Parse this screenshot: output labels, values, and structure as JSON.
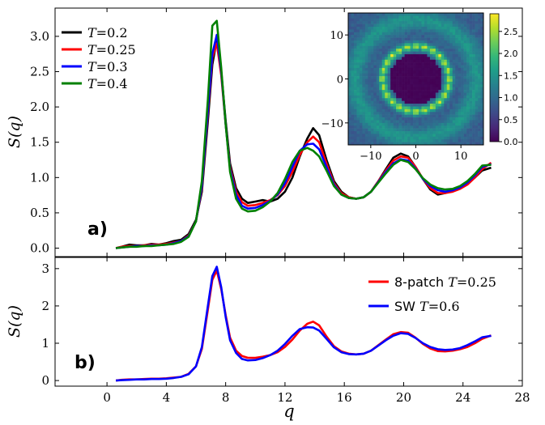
{
  "chart_data": [
    {
      "panel_label": "a)",
      "type": "line",
      "xlabel": "",
      "ylabel": "S(q)",
      "xlim": [
        -3.5,
        28
      ],
      "ylim": [
        -0.12,
        3.4
      ],
      "yticks": [
        "0.0",
        "0.5",
        "1.0",
        "1.5",
        "2.0",
        "2.5",
        "3.0"
      ],
      "yticks_values": [
        0,
        0.5,
        1.0,
        1.5,
        2.0,
        2.5,
        3.0
      ],
      "legend_position": "top-left",
      "series": [
        {
          "name": "T=0.2",
          "color": "#000000",
          "x": [
            0.6,
            1.0,
            1.5,
            2.0,
            2.5,
            3.0,
            3.5,
            4.0,
            4.5,
            5.0,
            5.5,
            6.0,
            6.4,
            6.8,
            7.1,
            7.4,
            7.7,
            8.0,
            8.3,
            8.7,
            9.1,
            9.5,
            10.0,
            10.5,
            11.0,
            11.5,
            12.0,
            12.5,
            13.0,
            13.5,
            13.9,
            14.3,
            14.8,
            15.3,
            15.8,
            16.3,
            16.8,
            17.3,
            17.8,
            18.3,
            18.8,
            19.3,
            19.8,
            20.3,
            20.8,
            21.3,
            21.8,
            22.3,
            22.8,
            23.3,
            23.8,
            24.3,
            24.8,
            25.3,
            25.9
          ],
          "y": [
            0.0,
            0.02,
            0.05,
            0.04,
            0.04,
            0.06,
            0.05,
            0.07,
            0.1,
            0.12,
            0.2,
            0.4,
            0.8,
            1.8,
            2.6,
            2.95,
            2.5,
            1.8,
            1.2,
            0.85,
            0.7,
            0.64,
            0.66,
            0.68,
            0.66,
            0.7,
            0.8,
            1.0,
            1.3,
            1.55,
            1.7,
            1.6,
            1.25,
            0.95,
            0.8,
            0.72,
            0.7,
            0.72,
            0.8,
            0.95,
            1.12,
            1.28,
            1.34,
            1.3,
            1.15,
            0.98,
            0.83,
            0.76,
            0.78,
            0.82,
            0.85,
            0.92,
            1.0,
            1.1,
            1.14
          ]
        },
        {
          "name": "T=0.25",
          "color": "#ff0000",
          "x": [
            0.6,
            1.0,
            1.5,
            2.0,
            2.5,
            3.0,
            3.5,
            4.0,
            4.5,
            5.0,
            5.5,
            6.0,
            6.4,
            6.8,
            7.1,
            7.4,
            7.7,
            8.0,
            8.3,
            8.7,
            9.1,
            9.5,
            10.0,
            10.5,
            11.0,
            11.5,
            12.0,
            12.5,
            13.0,
            13.5,
            13.9,
            14.3,
            14.8,
            15.3,
            15.8,
            16.3,
            16.8,
            17.3,
            17.8,
            18.3,
            18.8,
            19.3,
            19.8,
            20.3,
            20.8,
            21.3,
            21.8,
            22.3,
            22.8,
            23.3,
            23.8,
            24.3,
            24.8,
            25.3,
            25.9
          ],
          "y": [
            0.0,
            0.02,
            0.03,
            0.03,
            0.04,
            0.05,
            0.05,
            0.06,
            0.08,
            0.1,
            0.18,
            0.38,
            0.85,
            1.9,
            2.7,
            2.9,
            2.45,
            1.75,
            1.15,
            0.8,
            0.65,
            0.6,
            0.61,
            0.64,
            0.68,
            0.75,
            0.88,
            1.08,
            1.32,
            1.5,
            1.58,
            1.5,
            1.2,
            0.92,
            0.78,
            0.72,
            0.7,
            0.72,
            0.8,
            0.95,
            1.1,
            1.24,
            1.3,
            1.28,
            1.15,
            0.98,
            0.85,
            0.78,
            0.78,
            0.8,
            0.84,
            0.9,
            1.0,
            1.12,
            1.21
          ]
        },
        {
          "name": "T=0.3",
          "color": "#0000ff",
          "x": [
            0.6,
            1.0,
            1.5,
            2.0,
            2.5,
            3.0,
            3.5,
            4.0,
            4.5,
            5.0,
            5.5,
            6.0,
            6.4,
            6.8,
            7.1,
            7.4,
            7.7,
            8.0,
            8.3,
            8.7,
            9.1,
            9.5,
            10.0,
            10.5,
            11.0,
            11.5,
            12.0,
            12.5,
            13.0,
            13.5,
            13.9,
            14.3,
            14.8,
            15.3,
            15.8,
            16.3,
            16.8,
            17.3,
            17.8,
            18.3,
            18.8,
            19.3,
            19.8,
            20.3,
            20.8,
            21.3,
            21.8,
            22.3,
            22.8,
            23.3,
            23.8,
            24.3,
            24.8,
            25.3,
            25.9
          ],
          "y": [
            0.0,
            0.01,
            0.02,
            0.03,
            0.03,
            0.04,
            0.04,
            0.05,
            0.07,
            0.1,
            0.17,
            0.38,
            0.88,
            1.95,
            2.75,
            3.02,
            2.5,
            1.75,
            1.12,
            0.76,
            0.6,
            0.56,
            0.57,
            0.61,
            0.67,
            0.76,
            0.92,
            1.15,
            1.38,
            1.47,
            1.48,
            1.4,
            1.15,
            0.9,
            0.76,
            0.71,
            0.7,
            0.72,
            0.8,
            0.94,
            1.08,
            1.2,
            1.26,
            1.24,
            1.13,
            0.98,
            0.88,
            0.82,
            0.8,
            0.82,
            0.86,
            0.93,
            1.03,
            1.15,
            1.19
          ]
        },
        {
          "name": "T=0.4",
          "color": "#008000",
          "x": [
            0.6,
            1.0,
            1.5,
            2.0,
            2.5,
            3.0,
            3.5,
            4.0,
            4.5,
            5.0,
            5.5,
            6.0,
            6.4,
            6.8,
            7.1,
            7.4,
            7.7,
            8.0,
            8.3,
            8.7,
            9.1,
            9.5,
            10.0,
            10.5,
            11.0,
            11.5,
            12.0,
            12.5,
            13.0,
            13.5,
            13.9,
            14.3,
            14.8,
            15.3,
            15.8,
            16.3,
            16.8,
            17.3,
            17.8,
            18.3,
            18.8,
            19.3,
            19.8,
            20.3,
            20.8,
            21.3,
            21.8,
            22.3,
            22.8,
            23.3,
            23.8,
            24.3,
            24.8,
            25.3,
            25.9
          ],
          "y": [
            0.0,
            0.01,
            0.02,
            0.02,
            0.03,
            0.03,
            0.04,
            0.05,
            0.06,
            0.09,
            0.16,
            0.38,
            0.95,
            2.1,
            3.15,
            3.22,
            2.55,
            1.75,
            1.08,
            0.7,
            0.56,
            0.52,
            0.53,
            0.58,
            0.66,
            0.78,
            0.98,
            1.22,
            1.38,
            1.42,
            1.38,
            1.3,
            1.1,
            0.88,
            0.76,
            0.71,
            0.7,
            0.72,
            0.8,
            0.93,
            1.06,
            1.18,
            1.25,
            1.22,
            1.12,
            0.99,
            0.9,
            0.85,
            0.83,
            0.84,
            0.88,
            0.95,
            1.05,
            1.17,
            1.18
          ]
        }
      ],
      "inset": {
        "type": "heatmap",
        "xticks": [
          "−10",
          "0",
          "10"
        ],
        "xticks_values": [
          -10,
          0,
          10
        ],
        "yticks": [
          "−10",
          "0",
          "10"
        ],
        "yticks_values": [
          -10,
          0,
          10
        ],
        "range": [
          -15,
          15
        ],
        "colorbar_ticks": [
          "0.0",
          "0.5",
          "1.0",
          "1.5",
          "2.0",
          "2.5"
        ],
        "colorbar_values": [
          0,
          0.5,
          1.0,
          1.5,
          2.0,
          2.5
        ],
        "colorbar_range": [
          0,
          2.9
        ],
        "colormap": "viridis",
        "ring_radius": 7.4,
        "ring_peak": 2.8,
        "spot_count": 24,
        "second_ring_radius": 13.5,
        "second_ring_level": 1.5,
        "background_level": 1.0,
        "center_level": 0.0
      }
    },
    {
      "panel_label": "b)",
      "type": "line",
      "xlabel": "q",
      "ylabel": "S(q)",
      "xlim": [
        -3.5,
        28
      ],
      "ylim": [
        -0.15,
        3.3
      ],
      "xticks": [
        "0",
        "4",
        "8",
        "12",
        "16",
        "20",
        "24",
        "28"
      ],
      "xticks_values": [
        0,
        4,
        8,
        12,
        16,
        20,
        24,
        28
      ],
      "yticks": [
        "0",
        "1",
        "2",
        "3"
      ],
      "yticks_values": [
        0,
        1,
        2,
        3
      ],
      "legend_position": "top-right",
      "series": [
        {
          "name": "8-patch T=0.25",
          "label_text": "8-patch",
          "label_math": "T=0.25",
          "color": "#ff0000",
          "x": [
            0.6,
            1.0,
            1.5,
            2.0,
            2.5,
            3.0,
            3.5,
            4.0,
            4.5,
            5.0,
            5.5,
            6.0,
            6.4,
            6.8,
            7.1,
            7.4,
            7.7,
            8.0,
            8.3,
            8.7,
            9.1,
            9.5,
            10.0,
            10.5,
            11.0,
            11.5,
            12.0,
            12.5,
            13.0,
            13.5,
            13.9,
            14.3,
            14.8,
            15.3,
            15.8,
            16.3,
            16.8,
            17.3,
            17.8,
            18.3,
            18.8,
            19.3,
            19.8,
            20.3,
            20.8,
            21.3,
            21.8,
            22.3,
            22.8,
            23.3,
            23.8,
            24.3,
            24.8,
            25.3,
            25.9
          ],
          "y": [
            0.0,
            0.02,
            0.03,
            0.03,
            0.04,
            0.05,
            0.05,
            0.06,
            0.08,
            0.1,
            0.18,
            0.38,
            0.85,
            1.9,
            2.7,
            2.95,
            2.45,
            1.75,
            1.15,
            0.8,
            0.66,
            0.61,
            0.61,
            0.64,
            0.68,
            0.76,
            0.9,
            1.1,
            1.34,
            1.52,
            1.58,
            1.48,
            1.18,
            0.92,
            0.78,
            0.72,
            0.7,
            0.72,
            0.8,
            0.95,
            1.1,
            1.24,
            1.3,
            1.28,
            1.15,
            0.98,
            0.86,
            0.79,
            0.78,
            0.8,
            0.84,
            0.9,
            1.0,
            1.12,
            1.21
          ]
        },
        {
          "name": "SW T=0.6",
          "label_text": "SW",
          "label_math": "T=0.6",
          "color": "#0000ff",
          "x": [
            0.6,
            1.0,
            1.5,
            2.0,
            2.5,
            3.0,
            3.5,
            4.0,
            4.5,
            5.0,
            5.5,
            6.0,
            6.4,
            6.8,
            7.1,
            7.4,
            7.7,
            8.0,
            8.3,
            8.7,
            9.1,
            9.5,
            10.0,
            10.5,
            11.0,
            11.5,
            12.0,
            12.5,
            13.0,
            13.5,
            13.9,
            14.3,
            14.8,
            15.3,
            15.8,
            16.3,
            16.8,
            17.3,
            17.8,
            18.3,
            18.8,
            19.3,
            19.8,
            20.3,
            20.8,
            21.3,
            21.8,
            22.3,
            22.8,
            23.3,
            23.8,
            24.3,
            24.8,
            25.3,
            25.9
          ],
          "y": [
            0.0,
            0.01,
            0.02,
            0.03,
            0.03,
            0.04,
            0.04,
            0.05,
            0.07,
            0.1,
            0.17,
            0.38,
            0.9,
            2.0,
            2.8,
            3.05,
            2.5,
            1.7,
            1.08,
            0.74,
            0.58,
            0.54,
            0.55,
            0.6,
            0.68,
            0.8,
            0.98,
            1.2,
            1.38,
            1.43,
            1.42,
            1.34,
            1.12,
            0.89,
            0.76,
            0.71,
            0.7,
            0.72,
            0.8,
            0.94,
            1.08,
            1.2,
            1.27,
            1.25,
            1.14,
            1.0,
            0.9,
            0.84,
            0.82,
            0.83,
            0.87,
            0.95,
            1.05,
            1.16,
            1.2
          ]
        }
      ]
    }
  ]
}
